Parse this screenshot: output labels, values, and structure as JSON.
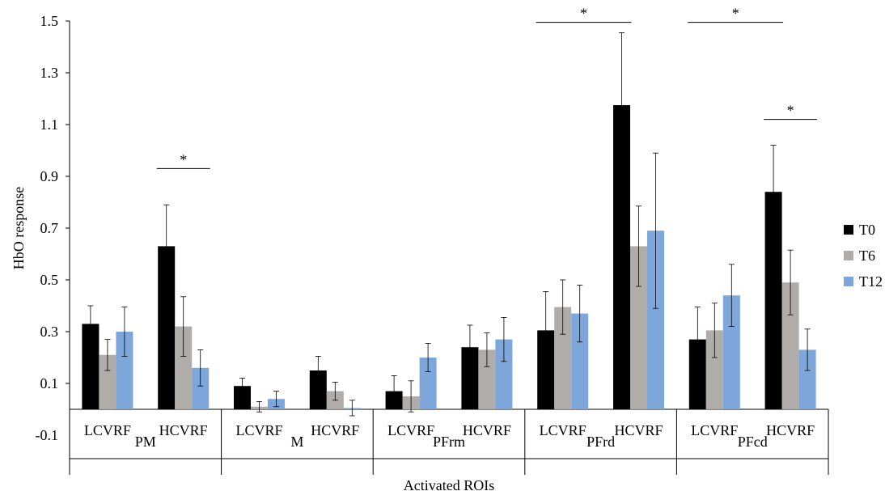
{
  "chart_data": {
    "type": "bar",
    "title": "",
    "xlabel": "Activated ROIs",
    "ylabel": "HbO response",
    "ylim": [
      -0.1,
      1.5
    ],
    "yticks": [
      "-0.1",
      "0.1",
      "0.3",
      "0.5",
      "0.7",
      "0.9",
      "1.1",
      "1.3",
      "1.5"
    ],
    "grid": false,
    "legend_position": "right",
    "groups": [
      "PM",
      "M",
      "PFrm",
      "PFrd",
      "PFcd"
    ],
    "subcategories": [
      "LCVRF",
      "HCVRF"
    ],
    "series": [
      {
        "name": "T0",
        "color": "#000000",
        "values": [
          0.33,
          0.63,
          0.09,
          0.15,
          0.07,
          0.24,
          0.305,
          1.175,
          0.27,
          0.84
        ],
        "errors": [
          0.07,
          0.16,
          0.03,
          0.055,
          0.06,
          0.085,
          0.15,
          0.28,
          0.125,
          0.18
        ]
      },
      {
        "name": "T6",
        "color": "#b0acaa",
        "values": [
          0.21,
          0.32,
          0.01,
          0.07,
          0.05,
          0.23,
          0.395,
          0.63,
          0.305,
          0.49
        ],
        "errors": [
          0.06,
          0.115,
          0.02,
          0.035,
          0.06,
          0.065,
          0.105,
          0.155,
          0.105,
          0.125
        ]
      },
      {
        "name": "T12",
        "color": "#7da7db",
        "values": [
          0.3,
          0.16,
          0.04,
          0.005,
          0.2,
          0.27,
          0.37,
          0.69,
          0.44,
          0.23
        ],
        "errors": [
          0.095,
          0.07,
          0.03,
          0.03,
          0.055,
          0.085,
          0.11,
          0.3,
          0.12,
          0.08
        ]
      }
    ],
    "annotations": [
      {
        "label": "*",
        "from_bar": [
          1,
          0
        ],
        "to_bar": [
          1,
          2
        ],
        "y": 0.93
      },
      {
        "label": "*",
        "from_bar": [
          6,
          0
        ],
        "to_bar": [
          7,
          0
        ],
        "y": 1.495
      },
      {
        "label": "*",
        "from_bar": [
          8,
          0
        ],
        "to_bar": [
          9,
          0
        ],
        "y": 1.495
      },
      {
        "label": "*",
        "from_bar": [
          9,
          0
        ],
        "to_bar": [
          9,
          2
        ],
        "y": 1.12
      }
    ]
  }
}
